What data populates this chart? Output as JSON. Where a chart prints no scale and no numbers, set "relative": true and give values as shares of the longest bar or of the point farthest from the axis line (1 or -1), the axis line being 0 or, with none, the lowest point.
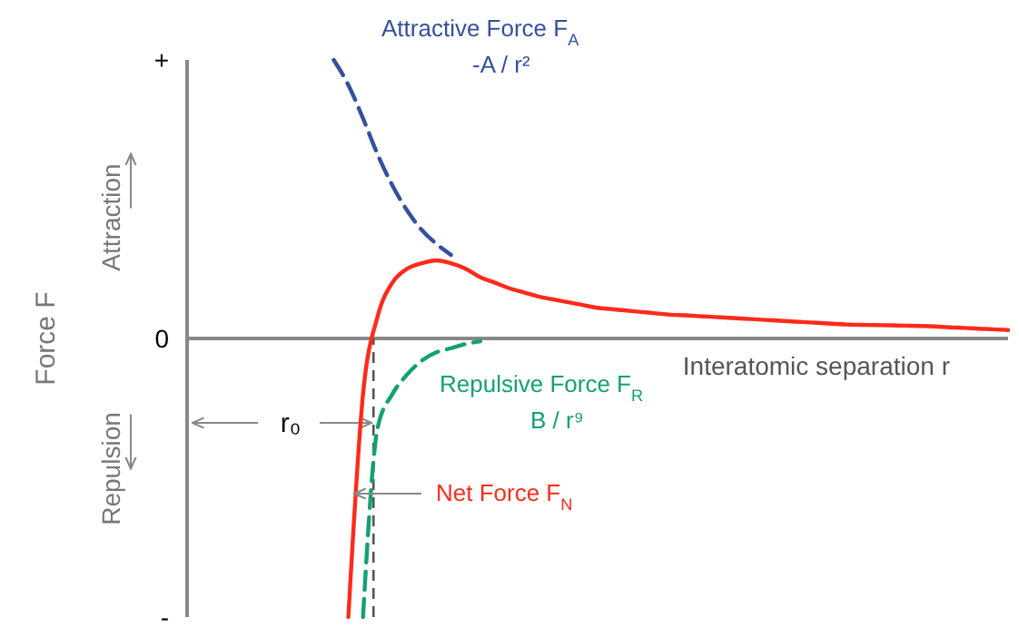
{
  "chart_data": {
    "type": "line",
    "relative": true,
    "xlabel": "Interatomic separation r",
    "ylabel": "Force F",
    "categories": [
      null,
      null,
      null,
      null,
      null,
      null,
      null,
      null,
      null,
      null,
      null,
      null,
      null,
      null,
      null,
      null,
      null,
      null,
      null,
      null,
      null,
      null,
      null,
      null,
      null,
      null,
      null,
      null,
      null,
      null,
      null,
      null,
      null,
      null,
      null,
      null,
      null,
      null,
      null,
      null,
      null,
      null,
      null,
      null,
      null,
      null,
      null,
      null,
      null,
      null,
      null,
      null,
      null,
      null,
      null,
      null,
      null
    ],
    "series": [
      {
        "name": "Attractive Force F$_{A}$\n-A / r²",
        "color": "#34509e",
        "line_style": "dashed",
        "values": [
          null,
          null,
          null,
          null,
          null,
          null,
          null,
          null,
          null,
          null,
          1.0,
          0.91,
          0.79,
          0.66,
          0.55,
          0.46,
          0.39,
          0.34,
          0.3,
          null,
          null,
          null,
          null,
          null,
          null,
          null,
          null,
          null,
          null,
          null,
          null,
          null,
          null,
          null,
          null,
          null,
          null,
          null,
          null,
          null,
          null,
          null,
          null,
          null,
          null,
          null,
          null,
          null,
          null,
          null,
          null,
          null,
          null,
          null,
          null,
          null,
          null
        ]
      },
      {
        "name": "Net Force F$_{N}$",
        "color": "#ff2a1a",
        "line_style": "solid",
        "values": [
          null,
          null,
          null,
          null,
          null,
          null,
          null,
          null,
          null,
          null,
          null,
          -1,
          -0.2,
          0.08,
          0.2,
          0.25,
          0.27,
          0.28,
          0.27,
          0.25,
          0.22,
          0.2,
          0.18,
          0.165,
          0.15,
          0.14,
          0.13,
          0.12,
          0.11,
          0.105,
          0.1,
          0.095,
          0.09,
          0.085,
          0.083,
          0.08,
          0.077,
          0.074,
          0.071,
          0.068,
          0.065,
          0.062,
          0.059,
          0.056,
          0.053,
          0.05,
          0.049,
          0.048,
          0.047,
          0.046,
          0.045,
          0.043,
          0.04,
          0.038,
          0.035,
          0.033,
          0.03
        ]
      },
      {
        "name": "Repulsive Force F$_{R}$\nB / r⁹",
        "color": "#13a173",
        "line_style": "dashed",
        "values": [
          null,
          null,
          null,
          null,
          null,
          null,
          null,
          null,
          null,
          null,
          null,
          null,
          -1,
          -0.32,
          -0.2,
          -0.13,
          -0.08,
          -0.05,
          -0.035,
          -0.02,
          -0.01,
          null,
          null,
          null,
          null,
          null,
          null,
          null,
          null,
          null,
          null,
          null,
          null,
          null,
          null,
          null,
          null,
          null,
          null,
          null,
          null,
          null,
          null,
          null,
          null,
          null,
          null,
          null,
          null,
          null,
          null,
          null,
          null,
          null,
          null,
          null,
          null
        ]
      }
    ],
    "annotations": [
      "+",
      "0",
      "-",
      "Attraction",
      "Repulsion",
      "r₀"
    ]
  }
}
